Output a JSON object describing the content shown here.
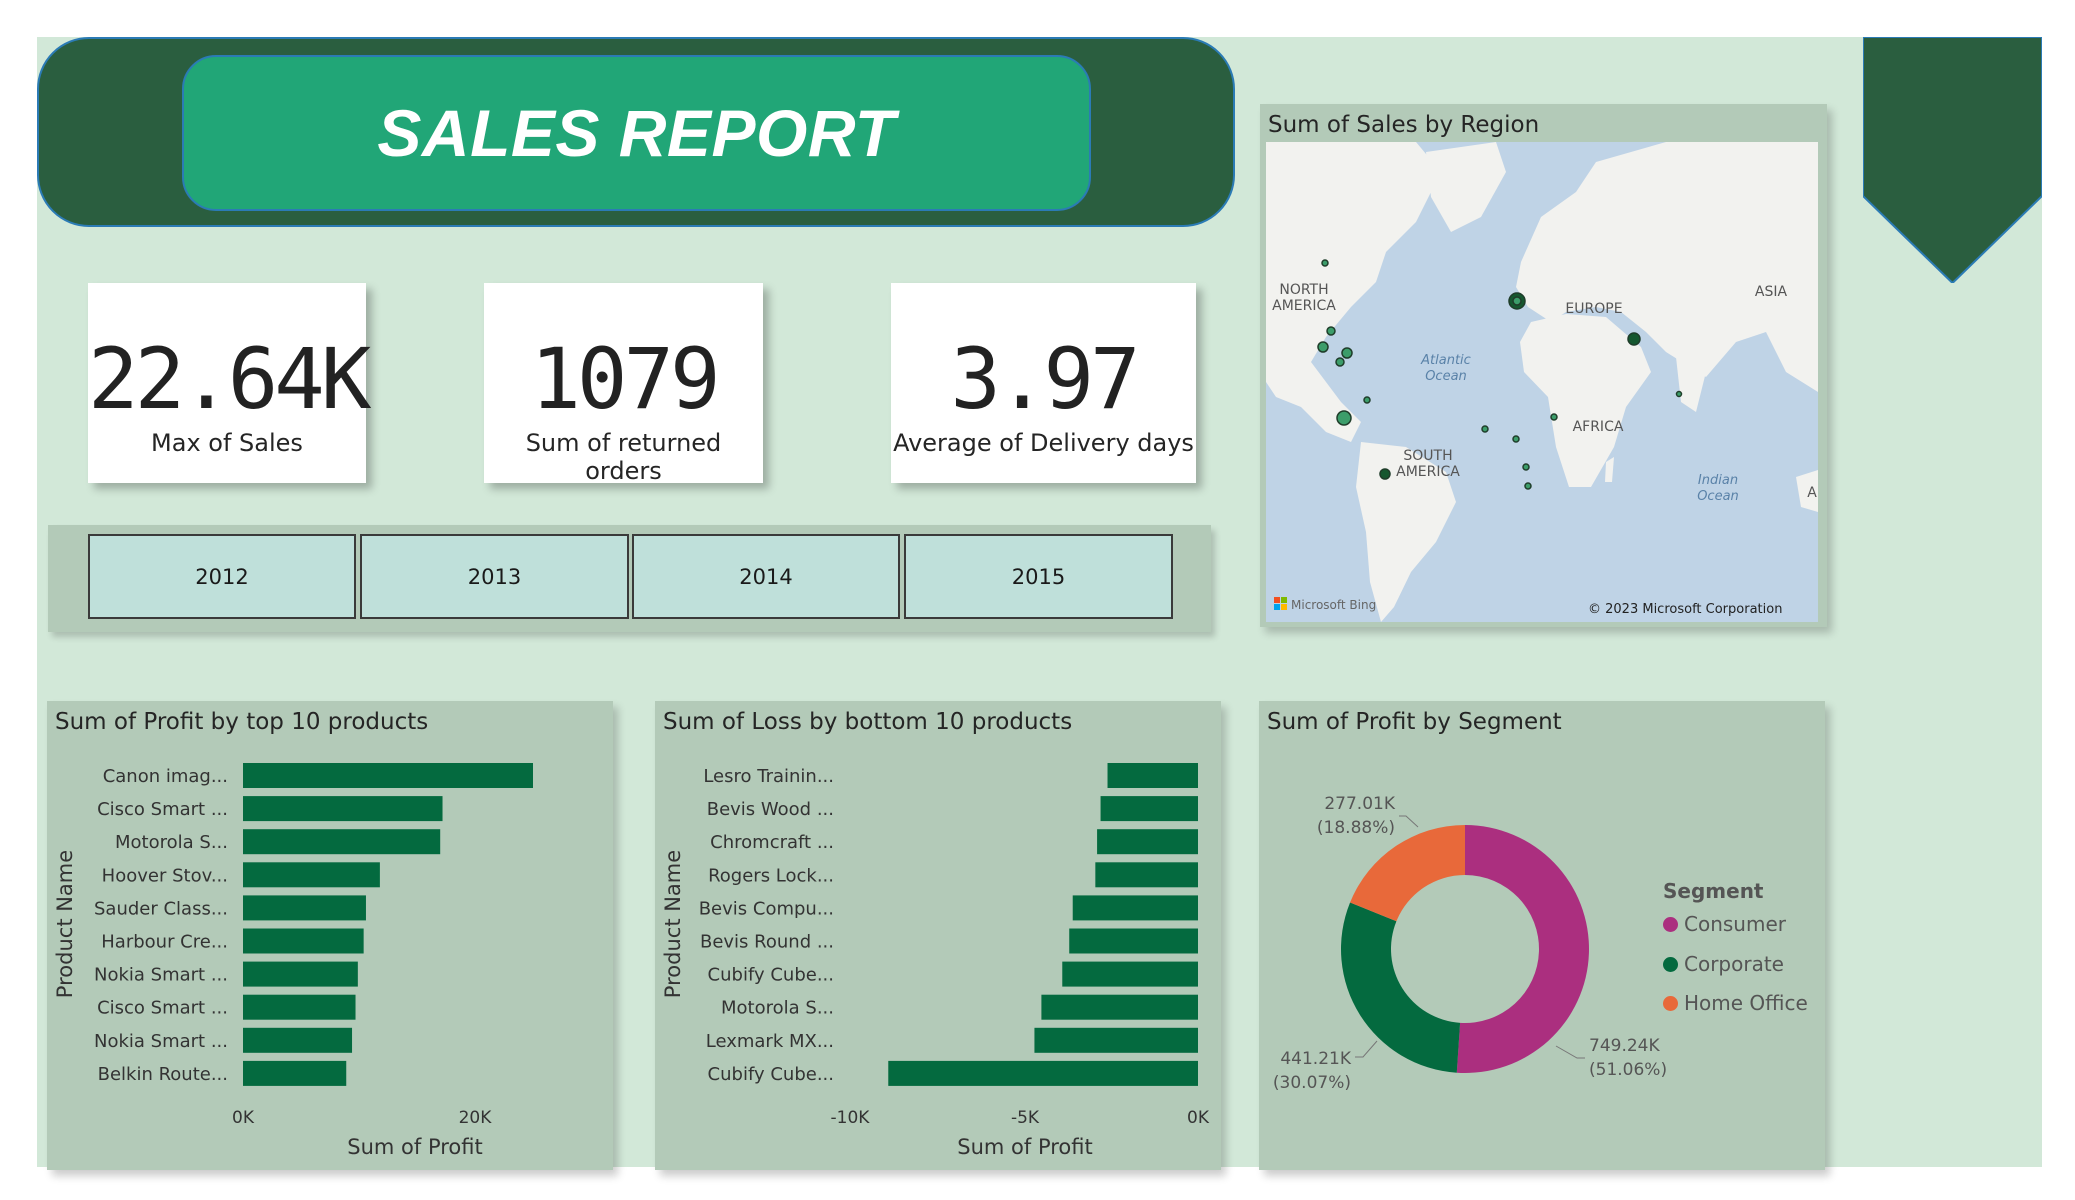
{
  "header": {
    "title": "SALES REPORT"
  },
  "kpis": [
    {
      "value": "22.64K",
      "label": "Max of Sales"
    },
    {
      "value": "1079",
      "label": "Sum of returned orders"
    },
    {
      "value": "3.97",
      "label": "Average of Delivery days"
    }
  ],
  "year_slicer": [
    "2012",
    "2013",
    "2014",
    "2015"
  ],
  "map_panel": {
    "title": "Sum of Sales by Region",
    "labels": {
      "north_america": [
        "NORTH",
        "AMERICA"
      ],
      "south_america": [
        "SOUTH",
        "AMERICA"
      ],
      "europe": "EUROPE",
      "asia": "ASIA",
      "africa": "AFRICA",
      "atlantic": [
        "Atlantic",
        "Ocean"
      ],
      "indian": [
        "Indian",
        "Ocean"
      ],
      "edge_letter": "A"
    },
    "logo": "Microsoft Bing",
    "copyright": "© 2023 Microsoft Corporation"
  },
  "colors": {
    "bar": "#046a3f",
    "consumer": "#ab2f7f",
    "corporate": "#046a3f",
    "home_office": "#e8693a",
    "page_bg": "#d2e8d8",
    "panel_bg": "#b3cab8",
    "header_bg": "#2a5e3f",
    "title_bg": "#21a677"
  },
  "chart_data": [
    {
      "type": "bar",
      "orientation": "horizontal",
      "title": "Sum of Profit by top 10 products",
      "xlabel": "Sum of Profit",
      "ylabel": "Product Name",
      "categories": [
        "Canon imag...",
        "Cisco Smart ...",
        "Motorola S...",
        "Hoover Stov...",
        "Sauder Class...",
        "Harbour Cre...",
        "Nokia Smart ...",
        "Cisco Smart ...",
        "Nokia Smart ...",
        "Belkin Route..."
      ],
      "values": [
        25000,
        17200,
        17000,
        11800,
        10600,
        10400,
        9900,
        9700,
        9400,
        8900
      ],
      "xticks": [
        "0K",
        "20K"
      ],
      "xlim": [
        0,
        29000
      ]
    },
    {
      "type": "bar",
      "orientation": "horizontal",
      "title": "Sum of Loss by bottom 10 products",
      "xlabel": "Sum of Profit",
      "ylabel": "Product Name",
      "categories": [
        "Lesro Trainin...",
        "Bevis Wood ...",
        "Chromcraft ...",
        "Rogers Lock...",
        "Bevis Compu...",
        "Bevis Round ...",
        "Cubify Cube...",
        "Motorola S...",
        "Lexmark MX...",
        "Cubify Cube..."
      ],
      "values": [
        -2600,
        -2800,
        -2900,
        -2950,
        -3600,
        -3700,
        -3900,
        -4500,
        -4700,
        -8900
      ],
      "xticks": [
        "-10K",
        "-5K",
        "0K"
      ],
      "xlim": [
        -10000,
        0
      ]
    },
    {
      "type": "pie",
      "style": "donut",
      "title": "Sum of Profit by Segment",
      "legend_title": "Segment",
      "legend_position": "right",
      "labels": [
        "Consumer",
        "Corporate",
        "Home Office"
      ],
      "values": [
        749240,
        441210,
        277010
      ],
      "value_labels": [
        "749.24K",
        "441.21K",
        "277.01K"
      ],
      "percent_labels": [
        "(51.06%)",
        "(30.07%)",
        "(18.88%)"
      ]
    }
  ]
}
